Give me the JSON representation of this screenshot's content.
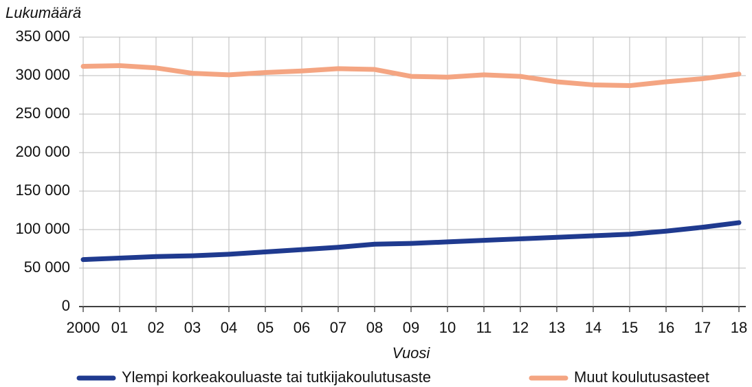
{
  "chart_data": {
    "type": "line",
    "y_label": "Lukumäärä",
    "x_label": "Vuosi",
    "categories": [
      "2000",
      "01",
      "02",
      "03",
      "04",
      "05",
      "06",
      "07",
      "08",
      "09",
      "10",
      "11",
      "12",
      "13",
      "14",
      "15",
      "16",
      "17",
      "18"
    ],
    "series": [
      {
        "name": "Ylempi korkeakouluaste tai tutkijakoulutusaste",
        "color": "#1f3a8f",
        "values": [
          61000,
          63000,
          65000,
          66000,
          68000,
          71000,
          74000,
          77000,
          81000,
          82000,
          84000,
          86000,
          88000,
          90000,
          92000,
          94000,
          98000,
          103000,
          109000
        ]
      },
      {
        "name": "Muut koulutusasteet",
        "color": "#f4a582",
        "values": [
          312000,
          313000,
          310000,
          303000,
          301000,
          304000,
          306000,
          309000,
          308000,
          299000,
          298000,
          301000,
          299000,
          292000,
          288000,
          287000,
          292000,
          296000,
          302000
        ]
      }
    ],
    "ylim": [
      0,
      350000
    ],
    "yticks": [
      0,
      {
        "value": 50000,
        "label": "50 000"
      },
      {
        "value": 100000,
        "label": "100 000"
      },
      {
        "value": 150000,
        "label": "150 000"
      },
      {
        "value": 200000,
        "label": "200 000"
      },
      {
        "value": 250000,
        "label": "250 000"
      },
      {
        "value": 300000,
        "label": "300 000"
      },
      {
        "value": 350000,
        "label": "350 000"
      }
    ],
    "grid": true,
    "legend": "bottom"
  }
}
